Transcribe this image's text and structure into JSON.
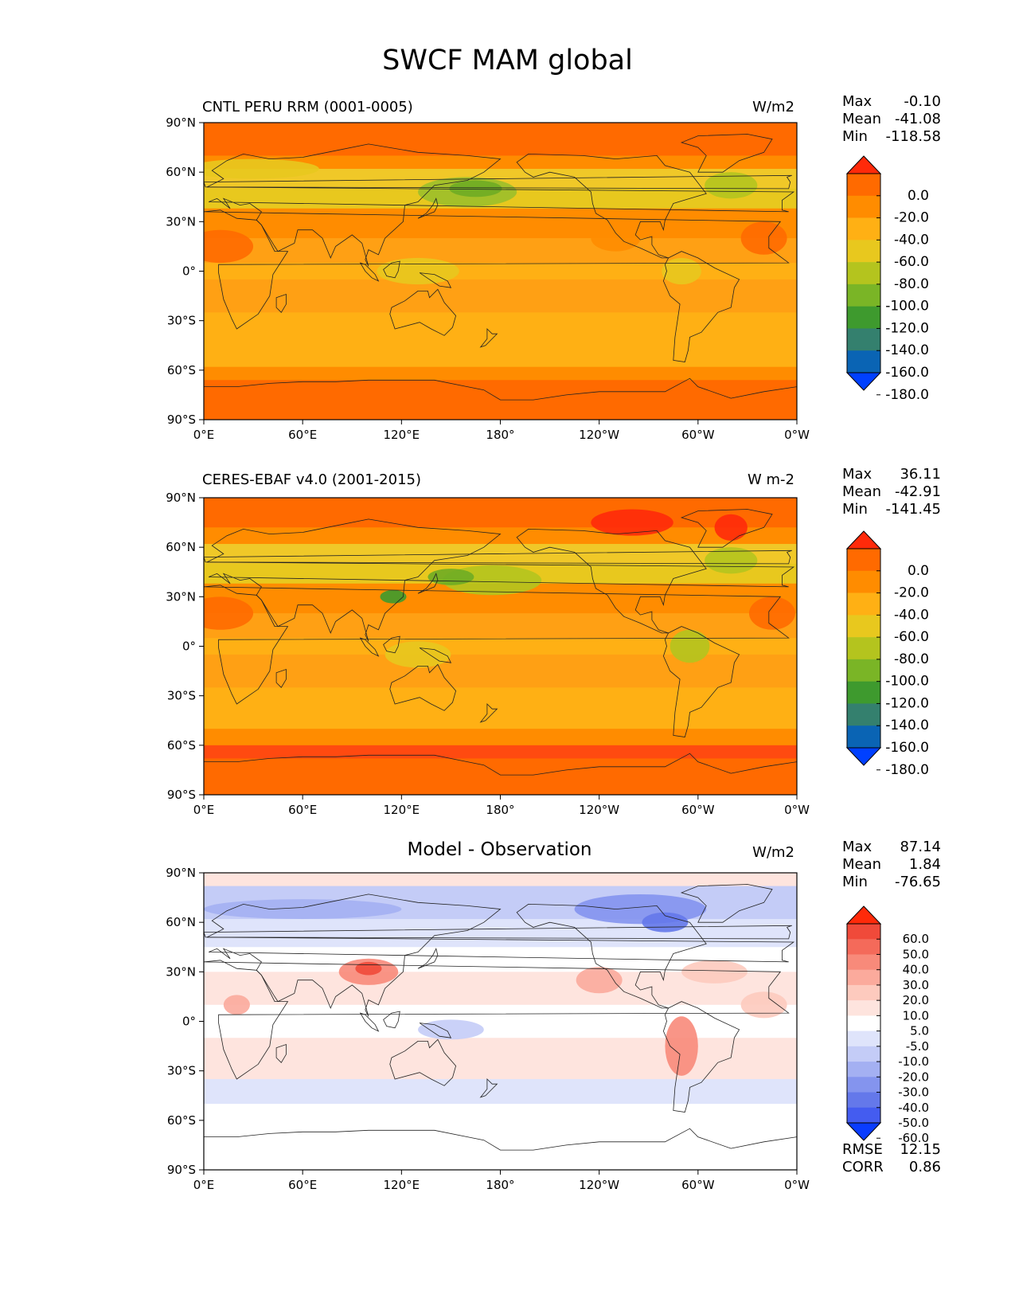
{
  "page": {
    "title": "SWCF MAM global"
  },
  "colors": {
    "orange_dark": "#ff6600",
    "orange": "#ff8c00",
    "orange_light": "#ffb01a",
    "yellow": "#f0c828",
    "yellow_green": "#c8c828",
    "green": "#9cbf2a",
    "green_dark": "#6fac24",
    "teal": "#3b8c6e",
    "blue": "#0a6bb8",
    "blue_bright": "#0044ff",
    "red": "#ff3311"
  },
  "colorbar_abs": {
    "labels": [
      "0.0",
      "-20.0",
      "-40.0",
      "-60.0",
      "-80.0",
      "-100.0",
      "-120.0",
      "-140.0",
      "-160.0",
      "-180.0"
    ],
    "colors": [
      "#ff2a0a",
      "#ff6a00",
      "#ff8c00",
      "#ffb014",
      "#e8c81e",
      "#b4c41e",
      "#7ab526",
      "#3e9a2e",
      "#34806e",
      "#0a64b4",
      "#0040ff"
    ]
  },
  "colorbar_diff": {
    "labels": [
      "60.0",
      "50.0",
      "40.0",
      "30.0",
      "20.0",
      "10.0",
      "5.0",
      "-5.0",
      "-10.0",
      "-20.0",
      "-30.0",
      "-40.0",
      "-50.0",
      "-60.0"
    ],
    "colors": [
      "#ff2a0a",
      "#f04a3a",
      "#f46a5a",
      "#f88a7a",
      "#fbaa9c",
      "#fdcabe",
      "#fee4de",
      "#ffffff",
      "#dfe4fb",
      "#c4ccf7",
      "#a4b0f2",
      "#8494ee",
      "#6478ea",
      "#445cf0",
      "#0a3cff"
    ]
  },
  "axes": {
    "lat_ticks": [
      "90°N",
      "60°N",
      "30°N",
      "0°",
      "30°S",
      "60°S",
      "90°S"
    ],
    "lon_ticks": [
      "0°E",
      "60°E",
      "120°E",
      "180°",
      "120°W",
      "60°W",
      "0°W"
    ]
  },
  "panels": [
    {
      "title": "CNTL PERU RRM (0001-0005)",
      "units": "W/m2",
      "stats": {
        "max_label": "Max",
        "max": "-0.10",
        "mean_label": "Mean",
        "mean": "-41.08",
        "min_label": "Min",
        "min": "-118.58"
      }
    },
    {
      "title": "CERES-EBAF v4.0 (2001-2015)",
      "units": "W m-2",
      "stats": {
        "max_label": "Max",
        "max": "36.11",
        "mean_label": "Mean",
        "mean": "-42.91",
        "min_label": "Min",
        "min": "-141.45"
      }
    },
    {
      "title": "Model - Observation",
      "units": "W/m2",
      "stats": {
        "max_label": "Max",
        "max": "87.14",
        "mean_label": "Mean",
        "mean": "1.84",
        "min_label": "Min",
        "min": "-76.65"
      },
      "extra": {
        "rmse_label": "RMSE",
        "rmse": "12.15",
        "corr_label": "CORR",
        "corr": "0.86"
      }
    }
  ],
  "chart_data": [
    {
      "type": "heatmap",
      "title": "CNTL PERU RRM (0001-0005)",
      "units": "W/m2",
      "x": [
        "0°E",
        "60°E",
        "120°E",
        "180°",
        "120°W",
        "60°W",
        "0°W"
      ],
      "y": [
        "90°N",
        "60°N",
        "30°N",
        "0°",
        "30°S",
        "60°S",
        "90°S"
      ],
      "max": -0.1,
      "mean": -41.08,
      "min": -118.58,
      "colorbar_levels": [
        0,
        -20,
        -40,
        -60,
        -80,
        -100,
        -120,
        -140,
        -160,
        -180
      ]
    },
    {
      "type": "heatmap",
      "title": "CERES-EBAF v4.0 (2001-2015)",
      "units": "W m-2",
      "x": [
        "0°E",
        "60°E",
        "120°E",
        "180°",
        "120°W",
        "60°W",
        "0°W"
      ],
      "y": [
        "90°N",
        "60°N",
        "30°N",
        "0°",
        "30°S",
        "60°S",
        "90°S"
      ],
      "max": 36.11,
      "mean": -42.91,
      "min": -141.45,
      "colorbar_levels": [
        0,
        -20,
        -40,
        -60,
        -80,
        -100,
        -120,
        -140,
        -160,
        -180
      ]
    },
    {
      "type": "heatmap",
      "title": "Model - Observation",
      "units": "W/m2",
      "x": [
        "0°E",
        "60°E",
        "120°E",
        "180°",
        "120°W",
        "60°W",
        "0°W"
      ],
      "y": [
        "90°N",
        "60°N",
        "30°N",
        "0°",
        "30°S",
        "60°S",
        "90°S"
      ],
      "max": 87.14,
      "mean": 1.84,
      "min": -76.65,
      "rmse": 12.15,
      "corr": 0.86,
      "colorbar_levels": [
        60,
        50,
        40,
        30,
        20,
        10,
        5,
        -5,
        -10,
        -20,
        -30,
        -40,
        -50,
        -60
      ]
    }
  ]
}
